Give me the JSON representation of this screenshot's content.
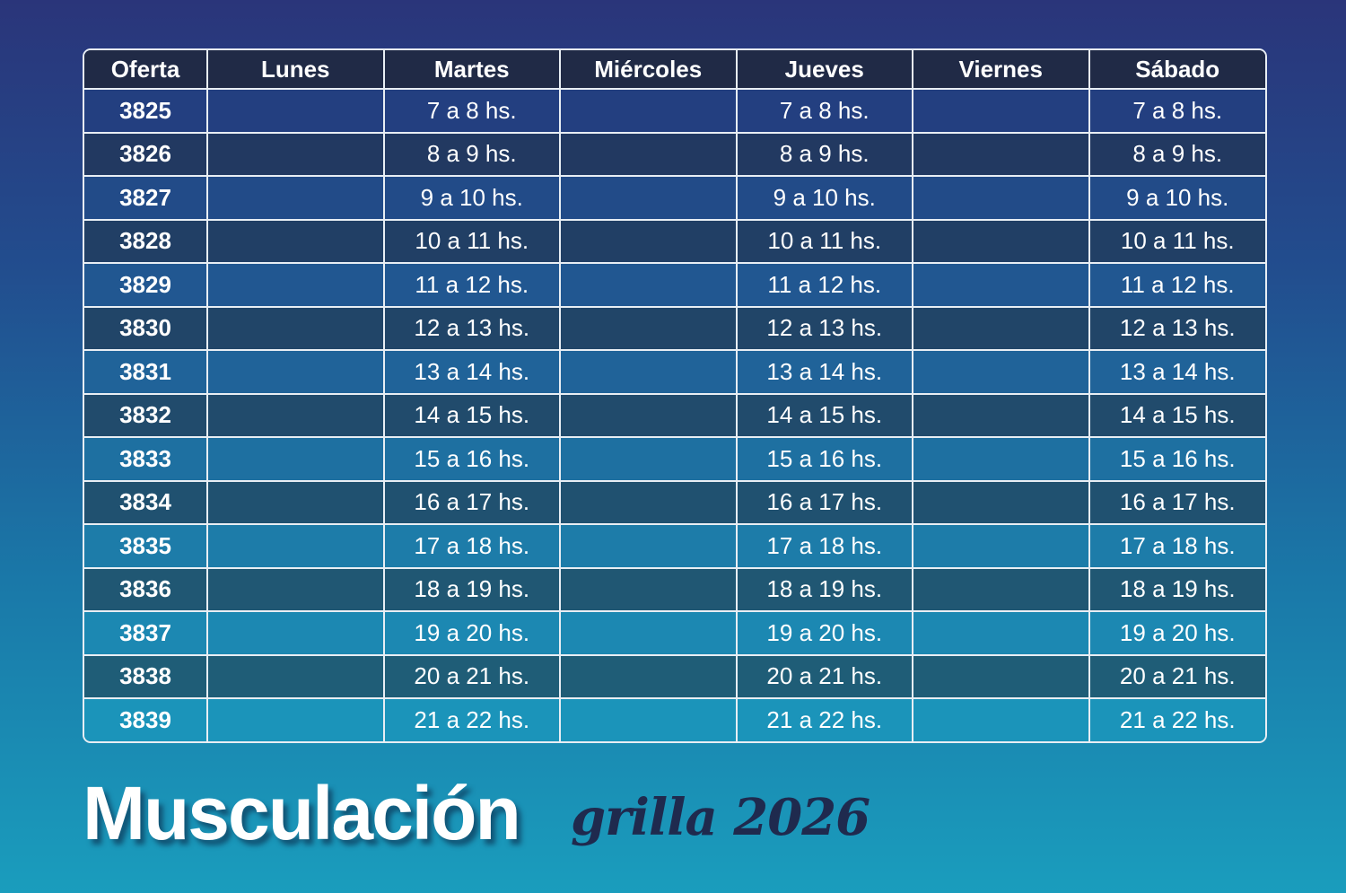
{
  "table": {
    "headers": [
      "Oferta",
      "Lunes",
      "Martes",
      "Miércoles",
      "Jueves",
      "Viernes",
      "Sábado"
    ],
    "rows": [
      {
        "oferta": "3825",
        "lunes": "",
        "martes": "7 a 8 hs.",
        "miercoles": "",
        "jueves": "7 a 8 hs.",
        "viernes": "",
        "sabado": "7 a 8 hs."
      },
      {
        "oferta": "3826",
        "lunes": "",
        "martes": "8 a 9 hs.",
        "miercoles": "",
        "jueves": "8 a 9 hs.",
        "viernes": "",
        "sabado": "8 a 9 hs."
      },
      {
        "oferta": "3827",
        "lunes": "",
        "martes": "9 a 10 hs.",
        "miercoles": "",
        "jueves": "9 a 10 hs.",
        "viernes": "",
        "sabado": "9 a 10 hs."
      },
      {
        "oferta": "3828",
        "lunes": "",
        "martes": "10 a 11 hs.",
        "miercoles": "",
        "jueves": "10 a 11 hs.",
        "viernes": "",
        "sabado": "10 a 11 hs."
      },
      {
        "oferta": "3829",
        "lunes": "",
        "martes": "11 a 12 hs.",
        "miercoles": "",
        "jueves": "11 a 12 hs.",
        "viernes": "",
        "sabado": "11 a 12 hs."
      },
      {
        "oferta": "3830",
        "lunes": "",
        "martes": "12 a 13 hs.",
        "miercoles": "",
        "jueves": "12 a 13 hs.",
        "viernes": "",
        "sabado": "12 a 13 hs."
      },
      {
        "oferta": "3831",
        "lunes": "",
        "martes": "13 a 14 hs.",
        "miercoles": "",
        "jueves": "13 a 14 hs.",
        "viernes": "",
        "sabado": "13 a 14 hs."
      },
      {
        "oferta": "3832",
        "lunes": "",
        "martes": "14 a 15 hs.",
        "miercoles": "",
        "jueves": "14 a 15 hs.",
        "viernes": "",
        "sabado": "14 a 15 hs."
      },
      {
        "oferta": "3833",
        "lunes": "",
        "martes": "15 a 16 hs.",
        "miercoles": "",
        "jueves": "15 a 16 hs.",
        "viernes": "",
        "sabado": "15 a 16 hs."
      },
      {
        "oferta": "3834",
        "lunes": "",
        "martes": "16 a 17 hs.",
        "miercoles": "",
        "jueves": "16 a 17 hs.",
        "viernes": "",
        "sabado": "16 a 17 hs."
      },
      {
        "oferta": "3835",
        "lunes": "",
        "martes": "17 a 18 hs.",
        "miercoles": "",
        "jueves": "17 a 18 hs.",
        "viernes": "",
        "sabado": "17 a 18 hs."
      },
      {
        "oferta": "3836",
        "lunes": "",
        "martes": "18 a 19 hs.",
        "miercoles": "",
        "jueves": "18 a 19 hs.",
        "viernes": "",
        "sabado": "18 a 19 hs."
      },
      {
        "oferta": "3837",
        "lunes": "",
        "martes": "19 a 20 hs.",
        "miercoles": "",
        "jueves": "19 a 20 hs.",
        "viernes": "",
        "sabado": "19 a 20 hs."
      },
      {
        "oferta": "3838",
        "lunes": "",
        "martes": "20 a 21 hs.",
        "miercoles": "",
        "jueves": "20 a 21 hs.",
        "viernes": "",
        "sabado": "20 a 21 hs."
      },
      {
        "oferta": "3839",
        "lunes": "",
        "martes": "21 a 22 hs.",
        "miercoles": "",
        "jueves": "21 a 22 hs.",
        "viernes": "",
        "sabado": "21 a 22 hs."
      }
    ]
  },
  "title": "Musculación",
  "subtitle": "grilla 2026",
  "colors": {
    "header": "#202a46",
    "border": "#e8eef4",
    "subtitle": "#1f2a4e"
  }
}
